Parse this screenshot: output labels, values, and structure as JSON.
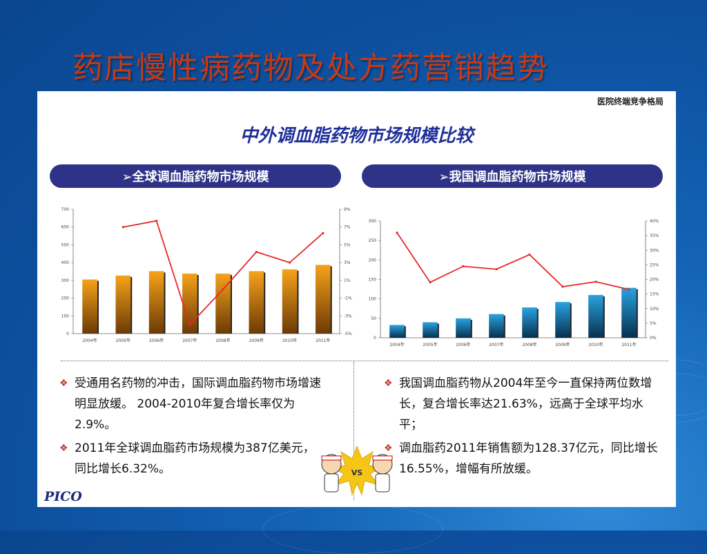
{
  "title": "药店慢性病药物及处方药营销趋势",
  "corner_label": "医院终端竞争格局",
  "panel_heading": "中外调血脂药物市场规模比较",
  "left_section": {
    "header": "➢全球调血脂药物市场规模",
    "bullets": [
      "受通用名药物的冲击，国际调血脂药物市场增速明显放缓。 2004-2010年复合增长率仅为2.9%。",
      " 2011年全球调血脂药市场规模为387亿美元，同比增长6.32%。"
    ]
  },
  "right_section": {
    "header": "➢我国调血脂药物市场规模",
    "bullets": [
      "我国调血脂药物从2004年至今一直保持两位数增长，复合增长率达21.63%，远高于全球平均水平；",
      "调血脂药2011年销售额为128.37亿元，同比增长16.55%，增幅有所放缓。"
    ]
  },
  "vs_label": "VS",
  "logo": "PICO",
  "colors": {
    "title": "#c53a16",
    "pill": "#2e3388",
    "line": "#e8262b",
    "bar_global": "#d9820f",
    "bar_china": "#1a88c7"
  },
  "chart_data": [
    {
      "type": "bar",
      "categories": [
        "2004年",
        "2005年",
        "2006年",
        "2007年",
        "2008年",
        "2009年",
        "2010年",
        "2011年"
      ],
      "series": [
        {
          "values": [
            305,
            327,
            352,
            338,
            338,
            352,
            362,
            387
          ]
        },
        {
          "values": [
            null,
            7.0,
            7.7,
            -4.0,
            0.0,
            4.2,
            3.0,
            6.32
          ]
        }
      ],
      "ylim": [
        0,
        700
      ],
      "yticks": [
        "0",
        "100",
        "200",
        "300",
        "400",
        "500",
        "600",
        "700"
      ],
      "y2lim": [
        -5,
        9
      ],
      "y2ticks": [
        "-5%",
        "-3%",
        "-1%",
        "1%",
        "3%",
        "5%",
        "7%",
        "9%"
      ],
      "grid": false
    },
    {
      "type": "bar",
      "categories": [
        "2004年",
        "2005年",
        "2006年",
        "2007年",
        "2008年",
        "2009年",
        "2010年",
        "2011年"
      ],
      "series": [
        {
          "values": [
            33,
            40,
            50,
            61,
            78,
            92,
            110,
            128.37
          ]
        },
        {
          "values": [
            36,
            19,
            24.5,
            23.5,
            28.5,
            17.5,
            19.2,
            16.55
          ]
        }
      ],
      "ylim": [
        0,
        300
      ],
      "yticks": [
        "0",
        "50",
        "100",
        "150",
        "200",
        "250",
        "300"
      ],
      "y2lim": [
        0,
        40
      ],
      "y2ticks": [
        "0%",
        "5%",
        "10%",
        "15%",
        "20%",
        "25%",
        "30%",
        "35%",
        "40%"
      ],
      "grid": false
    }
  ]
}
